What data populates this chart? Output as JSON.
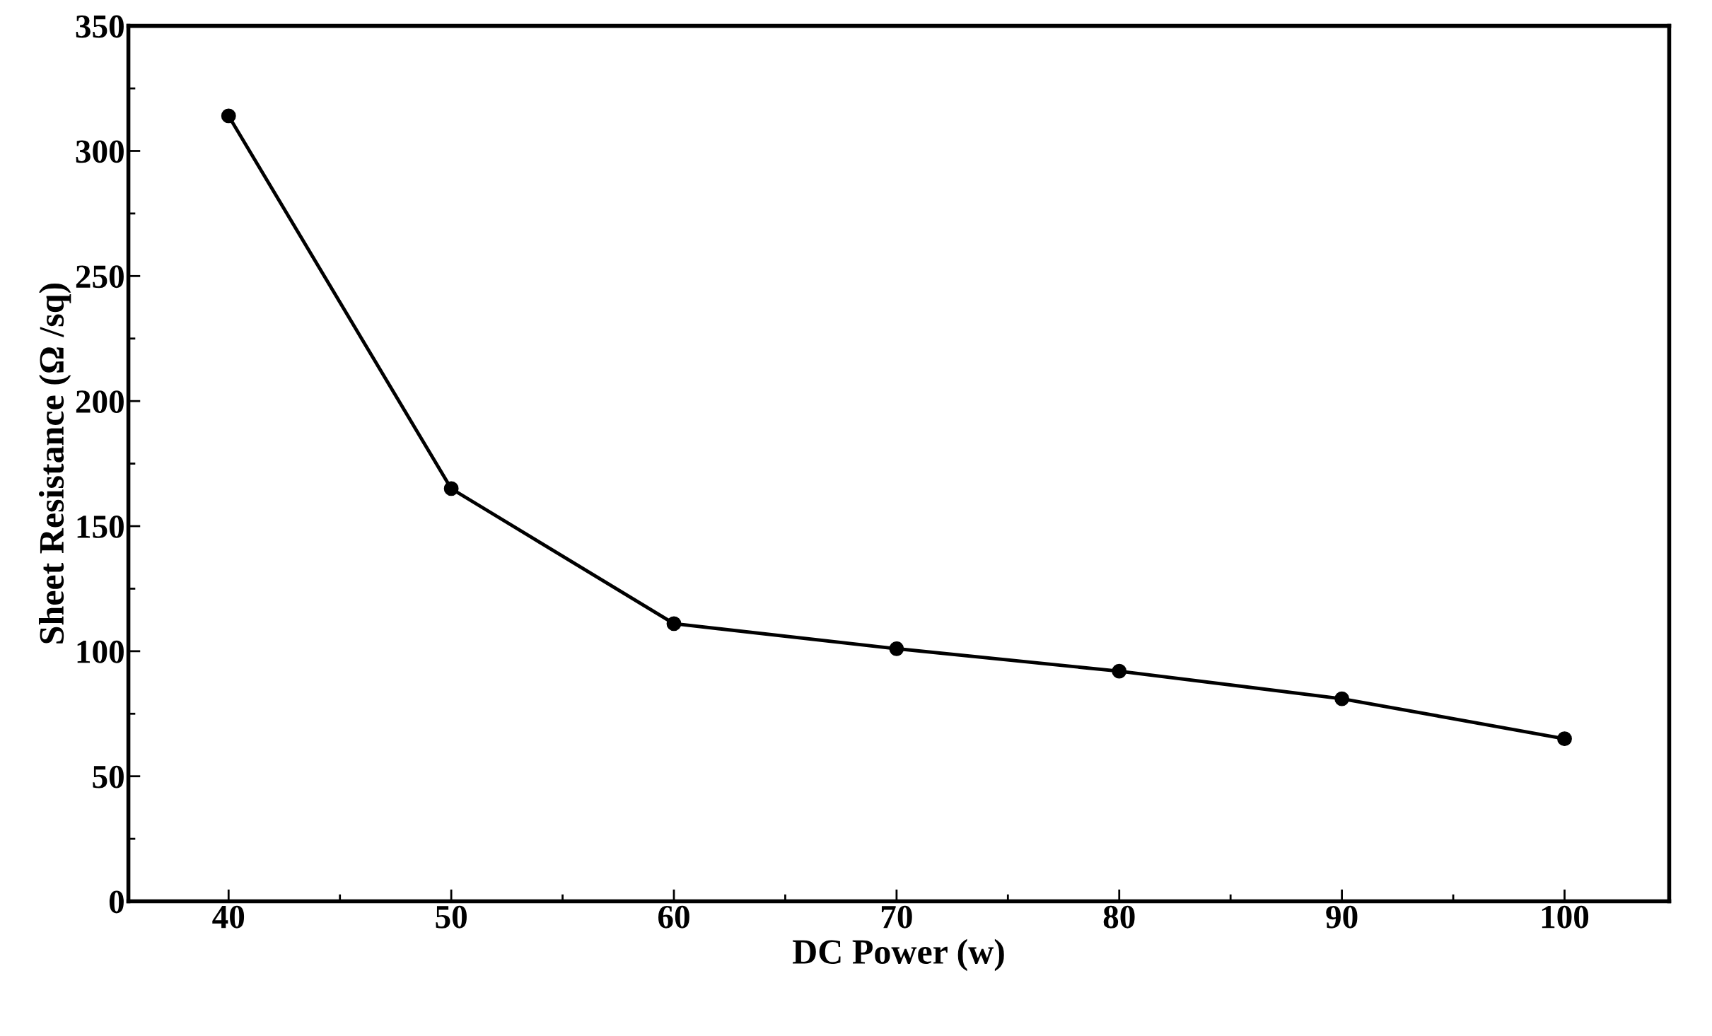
{
  "chart_data": {
    "type": "line",
    "xlabel": "DC Power (w)",
    "ylabel": "Sheet Resistance (Ω /sq)",
    "x": [
      40,
      50,
      60,
      70,
      80,
      90,
      100
    ],
    "series": [
      {
        "color": "#000000",
        "values": [
          314,
          165,
          111,
          101,
          92,
          81,
          65
        ]
      }
    ],
    "xlim": [
      35.5,
      104.7
    ],
    "xticks": [
      40,
      50,
      60,
      70,
      80,
      90,
      100
    ],
    "ylim": [
      0,
      350
    ],
    "yticks": [
      0,
      50,
      100,
      150,
      200,
      250,
      300,
      350
    ],
    "marker": "circle",
    "line_style": "solid",
    "grid": false,
    "legend": false
  }
}
